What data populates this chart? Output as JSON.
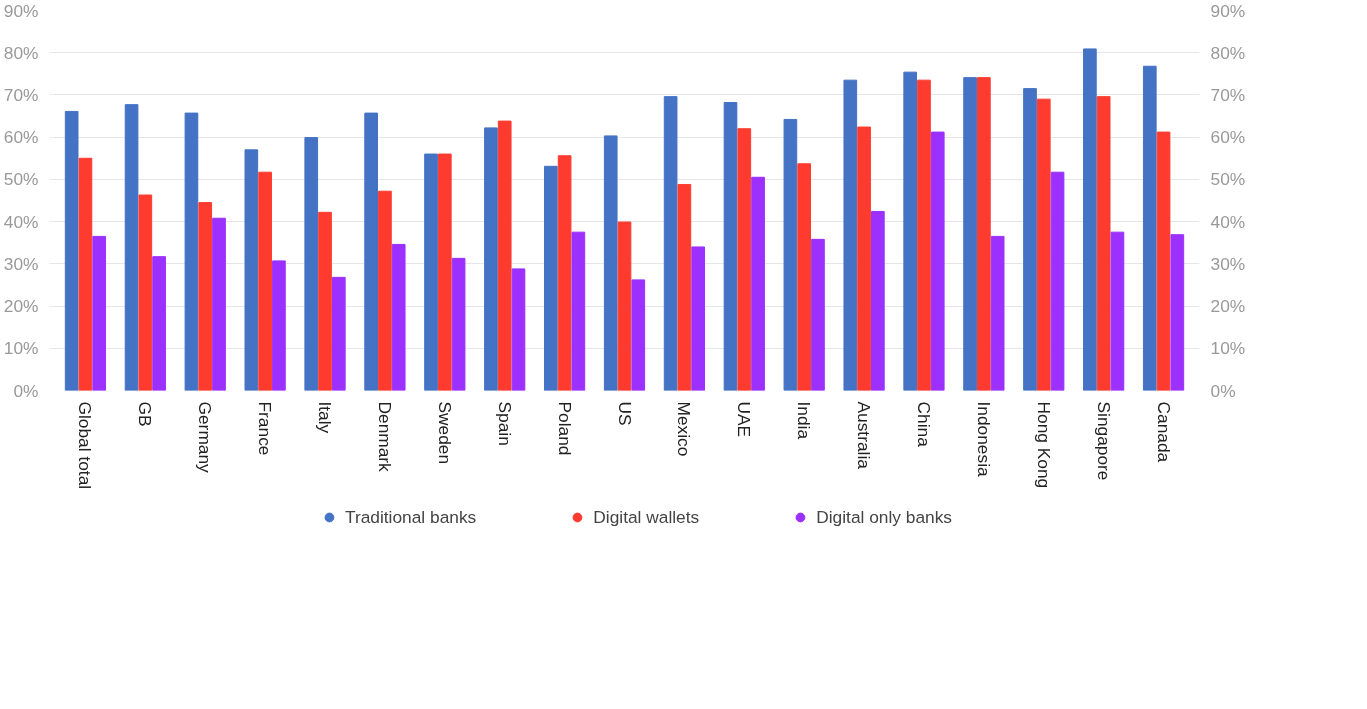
{
  "chart_data": {
    "type": "bar",
    "categories": [
      "Global total",
      "GB",
      "Germany",
      "France",
      "Italy",
      "Denmark",
      "Sweden",
      "Spain",
      "Poland",
      "US",
      "Mexico",
      "UAE",
      "India",
      "Australia",
      "China",
      "Indonesia",
      "Hong Kong",
      "Singapore",
      "Canada"
    ],
    "series": [
      {
        "name": "Traditional banks",
        "color": "#4472c4",
        "values": [
          66.1,
          67.7,
          65.7,
          57.0,
          59.9,
          65.7,
          56.0,
          62.2,
          53.1,
          60.3,
          69.6,
          68.2,
          64.2,
          73.5,
          75.4,
          74.1,
          71.5,
          80.9,
          76.8
        ]
      },
      {
        "name": "Digital wallets",
        "color": "#ff3b2f",
        "values": [
          55.0,
          46.3,
          44.5,
          51.7,
          42.2,
          47.2,
          56.0,
          63.8,
          55.6,
          39.9,
          48.8,
          62.0,
          53.7,
          62.4,
          73.5,
          74.1,
          69.0,
          69.6,
          61.2
        ]
      },
      {
        "name": "Digital only banks",
        "color": "#9b30ff",
        "values": [
          36.5,
          31.7,
          40.8,
          30.7,
          26.8,
          34.6,
          31.3,
          28.8,
          37.5,
          26.2,
          34.0,
          50.5,
          35.8,
          42.4,
          61.2,
          36.5,
          51.7,
          37.5,
          36.9
        ]
      }
    ],
    "ylim": [
      0,
      90
    ],
    "yticks": [
      {
        "value": 0,
        "label": "0%"
      },
      {
        "value": 10,
        "label": "10%"
      },
      {
        "value": 20,
        "label": "20%"
      },
      {
        "value": 30,
        "label": "30%"
      },
      {
        "value": 40,
        "label": "40%"
      },
      {
        "value": 50,
        "label": "50%"
      },
      {
        "value": 60,
        "label": "60%"
      },
      {
        "value": 70,
        "label": "70%"
      },
      {
        "value": 80,
        "label": "80%"
      },
      {
        "value": 90,
        "label": "90%"
      }
    ],
    "y2lim": [
      0,
      90
    ],
    "y2ticks": [
      {
        "value": 0,
        "label": "0%"
      },
      {
        "value": 10,
        "label": "10%"
      },
      {
        "value": 20,
        "label": "20%"
      },
      {
        "value": 30,
        "label": "30%"
      },
      {
        "value": 40,
        "label": "40%"
      },
      {
        "value": 50,
        "label": "50%"
      },
      {
        "value": 60,
        "label": "60%"
      },
      {
        "value": 70,
        "label": "70%"
      },
      {
        "value": 80,
        "label": "80%"
      },
      {
        "value": 90,
        "label": "90%"
      }
    ],
    "grid": "y",
    "legend": "bottom"
  }
}
